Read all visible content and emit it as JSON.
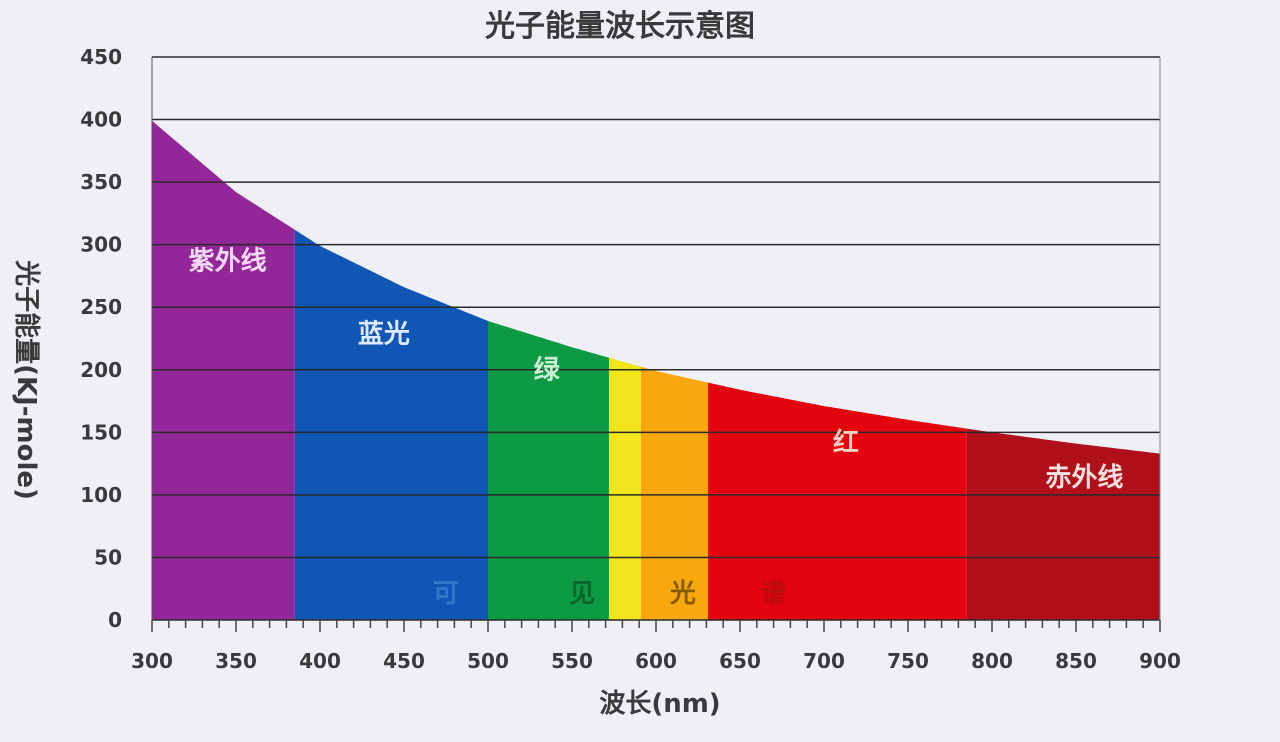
{
  "chart_data": {
    "type": "area",
    "title": "光子能量波长示意图",
    "xlabel": "波长(nm)",
    "ylabel": "光子能量(KJ-mole)",
    "xlim": [
      300,
      900
    ],
    "ylim": [
      0,
      450
    ],
    "x_ticks": [
      "300",
      "350",
      "400",
      "450",
      "500",
      "550",
      "600",
      "650",
      "700",
      "750",
      "800",
      "850",
      "900"
    ],
    "y_ticks": [
      "0",
      "50",
      "100",
      "150",
      "200",
      "250",
      "300",
      "350",
      "400",
      "450"
    ],
    "grid": "horizontal",
    "curve": {
      "x": [
        300,
        350,
        400,
        450,
        500,
        550,
        600,
        650,
        700,
        750,
        800,
        850,
        900
      ],
      "y": [
        399,
        342,
        299,
        266,
        239,
        218,
        199,
        184,
        171,
        160,
        150,
        141,
        133
      ]
    },
    "bands": [
      {
        "label": "紫外线",
        "from": 300,
        "to": 385,
        "color": "#93279a",
        "label_color": "#f6d8f4",
        "label_x": 345,
        "label_y": 280
      },
      {
        "label": "蓝光",
        "from": 385,
        "to": 500,
        "color": "#1056b5",
        "label_color": "#dfe9ff",
        "label_x": 438,
        "label_y": 222
      },
      {
        "label": "绿",
        "from": 500,
        "to": 572,
        "color": "#0d9a44",
        "label_color": "#c9f0d2",
        "label_x": 535,
        "label_y": 193
      },
      {
        "label": "",
        "from": 572,
        "to": 591,
        "color": "#f2e51c"
      },
      {
        "label": "",
        "from": 591,
        "to": 631,
        "color": "#f8a70f"
      },
      {
        "label": "红",
        "from": 631,
        "to": 785,
        "color": "#e3040f",
        "label_color": "#ffd0c0",
        "label_x": 713,
        "label_y": 135
      },
      {
        "label": "赤外线",
        "from": 785,
        "to": 900,
        "color": "#b0101a",
        "label_color": "#ffe0e0",
        "label_x": 855,
        "label_y": 107
      }
    ],
    "visible_annotation": {
      "chars": [
        "可",
        "见",
        "光",
        "谱"
      ],
      "x": [
        475,
        556,
        616,
        670
      ],
      "colors": [
        "#3e7fd0",
        "#0a5a22",
        "#6a4a00",
        "#b01010"
      ]
    }
  }
}
